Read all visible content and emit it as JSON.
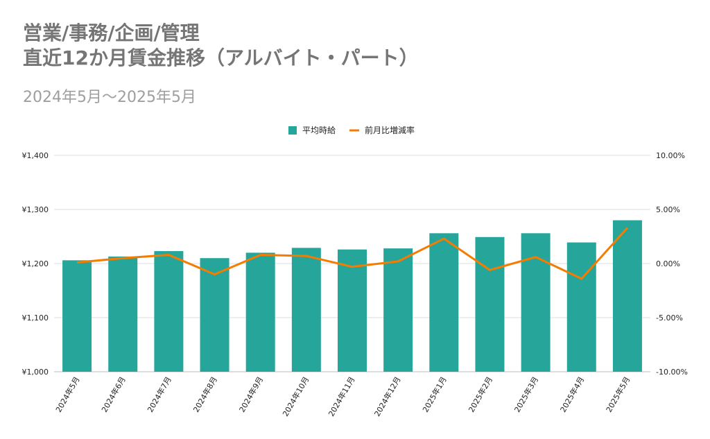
{
  "title_lines": [
    "営業/事務/企画/管理",
    "直近12か月賃金推移（アルバイト・パート）"
  ],
  "subtitle": "2024年5月～2025年5月",
  "colors": {
    "bar": "#26a69a",
    "line": "#f57c00",
    "grid": "#dddddd",
    "axis_text": "#222222"
  },
  "chart_data": {
    "type": "bar",
    "categories": [
      "2024年5月",
      "2024年6月",
      "2024年7月",
      "2024年8月",
      "2024年9月",
      "2024年10月",
      "2024年11月",
      "2024年12月",
      "2025年1月",
      "2025年2月",
      "2025年3月",
      "2025年4月",
      "2025年5月"
    ],
    "series": [
      {
        "name": "平均時給",
        "type": "bar",
        "axis": "left",
        "values": [
          1206,
          1213,
          1223,
          1210,
          1220,
          1229,
          1226,
          1228,
          1256,
          1249,
          1256,
          1239,
          1280
        ]
      },
      {
        "name": "前月比増減率",
        "type": "line",
        "axis": "right",
        "values": [
          0.1,
          0.5,
          0.8,
          -1.0,
          0.8,
          0.7,
          -0.3,
          0.2,
          2.3,
          -0.6,
          0.6,
          -1.4,
          3.3
        ]
      }
    ],
    "y_left": {
      "min": 1000,
      "max": 1400,
      "ticks": [
        "¥1,000",
        "¥1,100",
        "¥1,200",
        "¥1,300",
        "¥1,400"
      ]
    },
    "y_right": {
      "min": -10,
      "max": 10,
      "ticks": [
        "-10.00%",
        "-5.00%",
        "0.00%",
        "5.00%",
        "10.00%"
      ]
    },
    "grid": true,
    "legend_position": "top"
  }
}
